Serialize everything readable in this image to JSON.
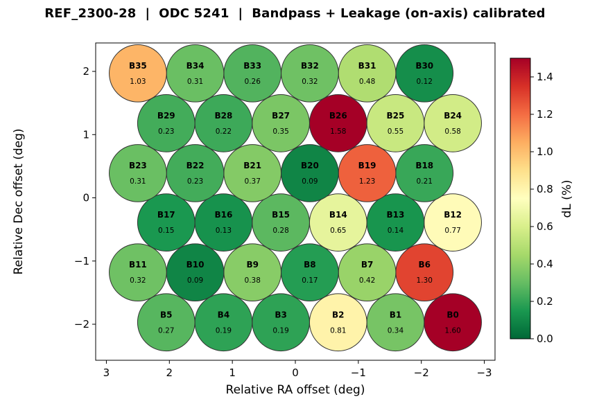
{
  "chart_data": {
    "type": "scatter",
    "title": "REF_2300-28  |  ODC 5241  |  Bandpass + Leakage (on-axis) calibrated",
    "xlabel": "Relative RA offset (deg)",
    "ylabel": "Relative Dec offset (deg)",
    "colorbar_label": "dL (%)",
    "xlim": [
      3.17,
      -3.17
    ],
    "ylim": [
      -2.57,
      2.45
    ],
    "x_tick_values": [
      3,
      2,
      1,
      0,
      -1,
      -2,
      -3
    ],
    "x_tick_labels": [
      "3",
      "2",
      "1",
      "0",
      "−1",
      "−2",
      "−3"
    ],
    "y_tick_values": [
      2,
      1,
      0,
      -1,
      -2
    ],
    "y_tick_labels": [
      "2",
      "1",
      "0",
      "−1",
      "−2"
    ],
    "vmin": 0.0,
    "vmax": 1.5,
    "colormap": "RdYlGn_r",
    "colormap_stops": [
      "#006837",
      "#1a9850",
      "#66bd63",
      "#a6d96a",
      "#d9ef8b",
      "#ffffbf",
      "#fee08b",
      "#fdae61",
      "#f46d43",
      "#d73027",
      "#a50026"
    ],
    "colorbar_tick_values": [
      0.0,
      0.2,
      0.4,
      0.6,
      0.8,
      1.0,
      1.2,
      1.4
    ],
    "colorbar_tick_labels": [
      "0.0",
      "0.2",
      "0.4",
      "0.6",
      "0.8",
      "1.0",
      "1.2",
      "1.4"
    ],
    "beam_radius_deg": 0.455,
    "grid": false,
    "beams": [
      {
        "name": "B0",
        "ra": -2.5,
        "dec": -1.97,
        "value": 1.6
      },
      {
        "name": "B1",
        "ra": -1.59,
        "dec": -1.97,
        "value": 0.34
      },
      {
        "name": "B2",
        "ra": -0.68,
        "dec": -1.97,
        "value": 0.81
      },
      {
        "name": "B3",
        "ra": 0.23,
        "dec": -1.97,
        "value": 0.19
      },
      {
        "name": "B4",
        "ra": 1.14,
        "dec": -1.97,
        "value": 0.19
      },
      {
        "name": "B5",
        "ra": 2.05,
        "dec": -1.97,
        "value": 0.27
      },
      {
        "name": "B6",
        "ra": -2.05,
        "dec": -1.18,
        "value": 1.3
      },
      {
        "name": "B7",
        "ra": -1.14,
        "dec": -1.18,
        "value": 0.42
      },
      {
        "name": "B8",
        "ra": -0.23,
        "dec": -1.18,
        "value": 0.17
      },
      {
        "name": "B9",
        "ra": 0.68,
        "dec": -1.18,
        "value": 0.38
      },
      {
        "name": "B10",
        "ra": 1.59,
        "dec": -1.18,
        "value": 0.09
      },
      {
        "name": "B11",
        "ra": 2.5,
        "dec": -1.18,
        "value": 0.32
      },
      {
        "name": "B12",
        "ra": -2.5,
        "dec": -0.39,
        "value": 0.77
      },
      {
        "name": "B13",
        "ra": -1.59,
        "dec": -0.39,
        "value": 0.14
      },
      {
        "name": "B14",
        "ra": -0.68,
        "dec": -0.39,
        "value": 0.65
      },
      {
        "name": "B15",
        "ra": 0.23,
        "dec": -0.39,
        "value": 0.28
      },
      {
        "name": "B16",
        "ra": 1.14,
        "dec": -0.39,
        "value": 0.13
      },
      {
        "name": "B17",
        "ra": 2.05,
        "dec": -0.39,
        "value": 0.15
      },
      {
        "name": "B18",
        "ra": -2.05,
        "dec": 0.39,
        "value": 0.21
      },
      {
        "name": "B19",
        "ra": -1.14,
        "dec": 0.39,
        "value": 1.23
      },
      {
        "name": "B20",
        "ra": -0.23,
        "dec": 0.39,
        "value": 0.09
      },
      {
        "name": "B21",
        "ra": 0.68,
        "dec": 0.39,
        "value": 0.37
      },
      {
        "name": "B22",
        "ra": 1.59,
        "dec": 0.39,
        "value": 0.23
      },
      {
        "name": "B23",
        "ra": 2.5,
        "dec": 0.39,
        "value": 0.31
      },
      {
        "name": "B24",
        "ra": -2.5,
        "dec": 1.18,
        "value": 0.58
      },
      {
        "name": "B25",
        "ra": -1.59,
        "dec": 1.18,
        "value": 0.55
      },
      {
        "name": "B26",
        "ra": -0.68,
        "dec": 1.18,
        "value": 1.58
      },
      {
        "name": "B27",
        "ra": 0.23,
        "dec": 1.18,
        "value": 0.35
      },
      {
        "name": "B28",
        "ra": 1.14,
        "dec": 1.18,
        "value": 0.22
      },
      {
        "name": "B29",
        "ra": 2.05,
        "dec": 1.18,
        "value": 0.23
      },
      {
        "name": "B30",
        "ra": -2.05,
        "dec": 1.97,
        "value": 0.12
      },
      {
        "name": "B31",
        "ra": -1.14,
        "dec": 1.97,
        "value": 0.48
      },
      {
        "name": "B32",
        "ra": -0.23,
        "dec": 1.97,
        "value": 0.32
      },
      {
        "name": "B33",
        "ra": 0.68,
        "dec": 1.97,
        "value": 0.26
      },
      {
        "name": "B34",
        "ra": 1.59,
        "dec": 1.97,
        "value": 0.31
      },
      {
        "name": "B35",
        "ra": 2.5,
        "dec": 1.97,
        "value": 1.03
      }
    ]
  }
}
